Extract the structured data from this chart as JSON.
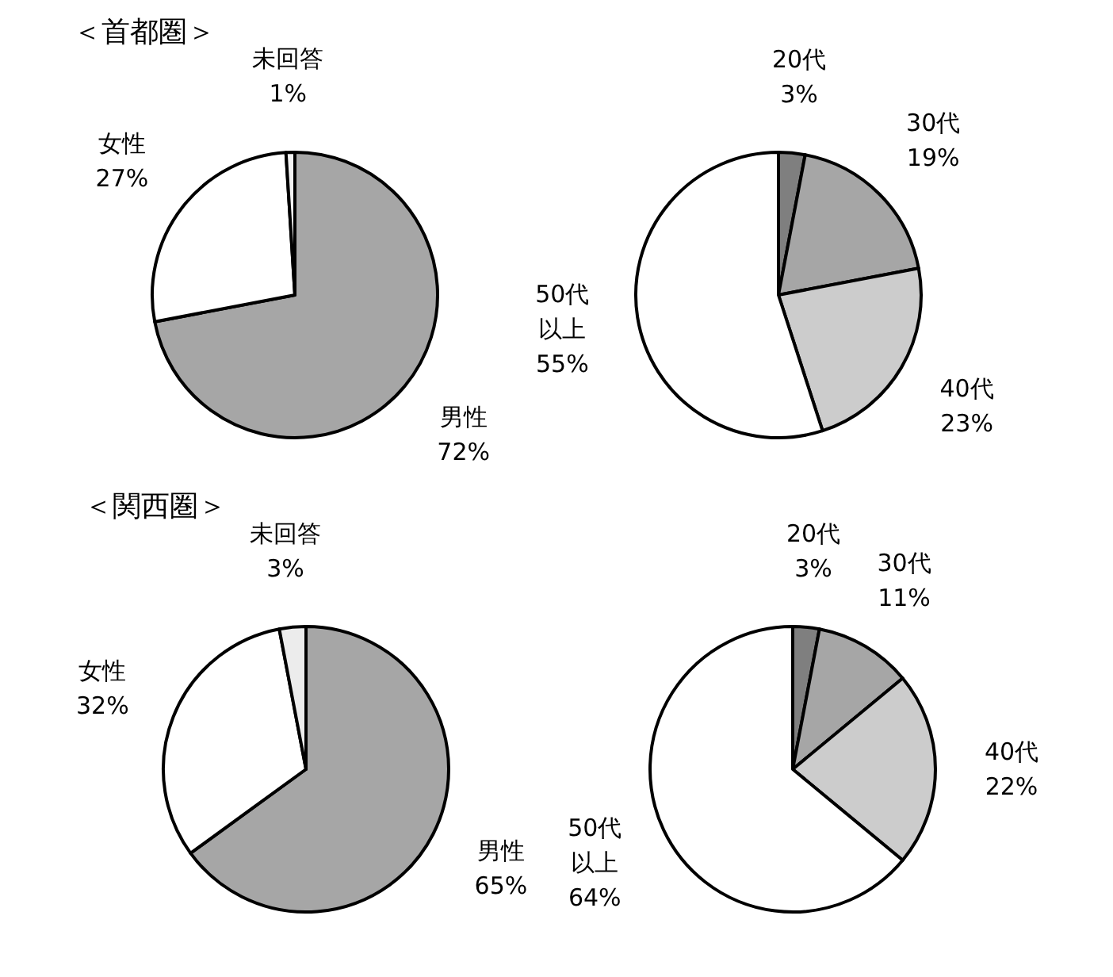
{
  "chart_data": [
    {
      "type": "pie",
      "title": "＜首都圏＞",
      "categories": [
        "男性",
        "女性",
        "未回答"
      ],
      "values": [
        72,
        27,
        1
      ],
      "colors": [
        "#a6a6a6",
        "#ffffff",
        "#f2f2f2"
      ],
      "value_labels": [
        "72%",
        "27%",
        "1%"
      ]
    },
    {
      "type": "pie",
      "categories": [
        "20代",
        "30代",
        "40代",
        "50代以上"
      ],
      "values": [
        3,
        19,
        23,
        55
      ],
      "colors": [
        "#7f7f7f",
        "#a6a6a6",
        "#cccccc",
        "#ffffff"
      ],
      "value_labels": [
        "3%",
        "19%",
        "23%",
        "55%"
      ]
    },
    {
      "type": "pie",
      "title": "＜関西圏＞",
      "categories": [
        "男性",
        "女性",
        "未回答"
      ],
      "values": [
        65,
        32,
        3
      ],
      "colors": [
        "#a6a6a6",
        "#ffffff",
        "#ececec"
      ],
      "value_labels": [
        "65%",
        "32%",
        "3%"
      ]
    },
    {
      "type": "pie",
      "categories": [
        "20代",
        "30代",
        "40代",
        "50代以上"
      ],
      "values": [
        3,
        11,
        22,
        64
      ],
      "colors": [
        "#7f7f7f",
        "#a6a6a6",
        "#cccccc",
        "#ffffff"
      ],
      "value_labels": [
        "3%",
        "11%",
        "22%",
        "64%"
      ]
    }
  ]
}
